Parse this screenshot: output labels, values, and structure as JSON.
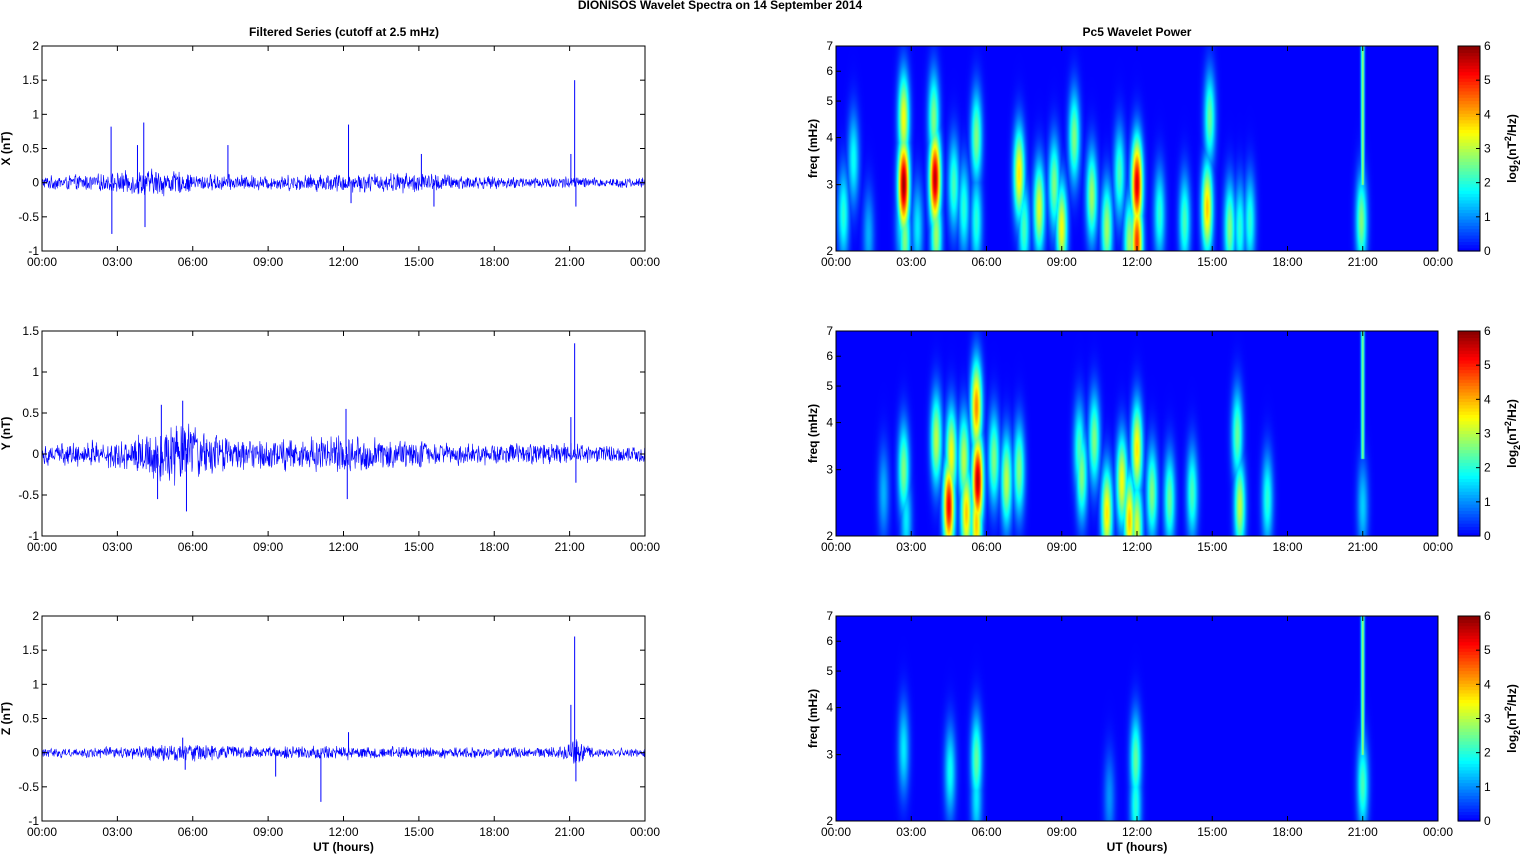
{
  "figure": {
    "title": "DIONISOS Wavelet Spectra on 14 September 2014",
    "left_title": "Filtered Series (cutoff at 2.5 mHz)",
    "right_title": "Pc5 Wavelet Power",
    "colors": {
      "series": "#0000ff",
      "background": "#00008f",
      "axes": "#000000"
    }
  },
  "chart_data": [
    {
      "type": "line",
      "component": "X",
      "ylabel": "X (nT)",
      "xlabel": "",
      "x_tick_labels": [
        "00:00",
        "03:00",
        "06:00",
        "09:00",
        "12:00",
        "15:00",
        "18:00",
        "21:00",
        "00:00"
      ],
      "xlim_hours": [
        0,
        24
      ],
      "ylim": [
        -1,
        2
      ],
      "y_ticks": [
        -1,
        -0.5,
        0,
        0.5,
        1,
        1.5,
        2
      ],
      "y_tick_labels": [
        "-1",
        "-0.5",
        "0",
        "0.5",
        "1",
        "1.5",
        "2"
      ],
      "grid": false,
      "series": [
        {
          "noise_envelope": [
            [
              0,
              0.09
            ],
            [
              2.5,
              0.12
            ],
            [
              4.5,
              0.2
            ],
            [
              6,
              0.12
            ],
            [
              9,
              0.1
            ],
            [
              12,
              0.13
            ],
            [
              15,
              0.14
            ],
            [
              18,
              0.08
            ],
            [
              21,
              0.09
            ],
            [
              22,
              0.07
            ],
            [
              24,
              0.07
            ]
          ],
          "spikes": [
            {
              "x": 2.75,
              "y": 0.82
            },
            {
              "x": 2.78,
              "y": -0.75
            },
            {
              "x": 4.05,
              "y": 0.88
            },
            {
              "x": 4.1,
              "y": -0.65
            },
            {
              "x": 3.8,
              "y": 0.55
            },
            {
              "x": 7.4,
              "y": 0.55
            },
            {
              "x": 12.2,
              "y": 0.85
            },
            {
              "x": 12.3,
              "y": -0.3
            },
            {
              "x": 15.1,
              "y": 0.42
            },
            {
              "x": 15.6,
              "y": -0.35
            },
            {
              "x": 21.05,
              "y": 0.42
            },
            {
              "x": 21.2,
              "y": 1.5
            },
            {
              "x": 21.25,
              "y": -0.35
            }
          ]
        }
      ]
    },
    {
      "type": "line",
      "component": "Y",
      "ylabel": "Y (nT)",
      "xlabel": "",
      "x_tick_labels": [
        "00:00",
        "03:00",
        "06:00",
        "09:00",
        "12:00",
        "15:00",
        "18:00",
        "21:00",
        "00:00"
      ],
      "xlim_hours": [
        0,
        24
      ],
      "ylim": [
        -1,
        1.5
      ],
      "y_ticks": [
        -1,
        -0.5,
        0,
        0.5,
        1,
        1.5
      ],
      "y_tick_labels": [
        "-1",
        "-0.5",
        "0",
        "0.5",
        "1",
        "1.5"
      ],
      "grid": false,
      "series": [
        {
          "noise_envelope": [
            [
              0,
              0.12
            ],
            [
              3.5,
              0.18
            ],
            [
              4.5,
              0.3
            ],
            [
              5.8,
              0.38
            ],
            [
              7,
              0.2
            ],
            [
              10,
              0.18
            ],
            [
              12,
              0.22
            ],
            [
              15,
              0.15
            ],
            [
              18,
              0.12
            ],
            [
              21,
              0.12
            ],
            [
              22,
              0.1
            ],
            [
              24,
              0.1
            ]
          ],
          "spikes": [
            {
              "x": 4.75,
              "y": 0.6
            },
            {
              "x": 4.6,
              "y": -0.55
            },
            {
              "x": 5.6,
              "y": 0.65
            },
            {
              "x": 5.75,
              "y": -0.7
            },
            {
              "x": 12.1,
              "y": 0.55
            },
            {
              "x": 12.15,
              "y": -0.55
            },
            {
              "x": 21.2,
              "y": 1.35
            },
            {
              "x": 21.25,
              "y": -0.35
            },
            {
              "x": 21.05,
              "y": 0.45
            }
          ]
        }
      ]
    },
    {
      "type": "line",
      "component": "Z",
      "ylabel": "Z (nT)",
      "xlabel": "UT (hours)",
      "x_tick_labels": [
        "00:00",
        "03:00",
        "06:00",
        "09:00",
        "12:00",
        "15:00",
        "18:00",
        "21:00",
        "00:00"
      ],
      "xlim_hours": [
        0,
        24
      ],
      "ylim": [
        -1,
        2
      ],
      "y_ticks": [
        -1,
        -0.5,
        0,
        0.5,
        1,
        1.5,
        2
      ],
      "y_tick_labels": [
        "-1",
        "-0.5",
        "0",
        "0.5",
        "1",
        "1.5",
        "2"
      ],
      "grid": false,
      "series": [
        {
          "noise_envelope": [
            [
              0,
              0.06
            ],
            [
              3,
              0.08
            ],
            [
              5.5,
              0.12
            ],
            [
              9,
              0.08
            ],
            [
              12,
              0.1
            ],
            [
              15,
              0.08
            ],
            [
              20.5,
              0.07
            ],
            [
              21.3,
              0.2
            ],
            [
              22,
              0.06
            ],
            [
              24,
              0.06
            ]
          ],
          "spikes": [
            {
              "x": 5.6,
              "y": 0.22
            },
            {
              "x": 5.7,
              "y": -0.25
            },
            {
              "x": 9.3,
              "y": -0.35
            },
            {
              "x": 11.1,
              "y": -0.72
            },
            {
              "x": 12.2,
              "y": 0.3
            },
            {
              "x": 21.05,
              "y": 0.7
            },
            {
              "x": 21.2,
              "y": 1.7
            },
            {
              "x": 21.25,
              "y": -0.42
            }
          ]
        }
      ]
    },
    {
      "type": "heatmap",
      "component": "X",
      "ylabel": "freq (mHz)",
      "xlabel": "",
      "x_tick_labels": [
        "00:00",
        "03:00",
        "06:00",
        "09:00",
        "12:00",
        "15:00",
        "18:00",
        "21:00",
        "00:00"
      ],
      "xlim_hours": [
        0,
        24
      ],
      "ylim_mhz": [
        2,
        7
      ],
      "y_scale": "log",
      "y_ticks": [
        2,
        3,
        4,
        5,
        6,
        7
      ],
      "y_tick_labels": [
        "2",
        "3",
        "4",
        "5",
        "6",
        "7"
      ],
      "colorbar": {
        "label": "log2(nT^2/Hz)",
        "label_base": "log",
        "label_sub": "2",
        "label_rest1": "(nT",
        "label_sup": "2",
        "label_rest2": "/Hz)",
        "ticks": [
          "0",
          "1",
          "2",
          "3",
          "4",
          "5",
          "6"
        ],
        "range": [
          0,
          6
        ],
        "colormap": "jet"
      },
      "events": [
        {
          "t": 0.3,
          "f": 2.5,
          "p": 2.0
        },
        {
          "t": 0.7,
          "f": 3.5,
          "p": 1.8
        },
        {
          "t": 1.3,
          "f": 2.2,
          "p": 1.2
        },
        {
          "t": 2.6,
          "f": 2.4,
          "p": 1.6
        },
        {
          "t": 2.7,
          "f": 3.0,
          "p": 5.8
        },
        {
          "t": 2.7,
          "f": 4.5,
          "p": 3.4
        },
        {
          "t": 2.75,
          "f": 2.15,
          "p": 2.6
        },
        {
          "t": 3.25,
          "f": 2.3,
          "p": 1.6
        },
        {
          "t": 3.95,
          "f": 3.1,
          "p": 5.6
        },
        {
          "t": 3.9,
          "f": 4.5,
          "p": 2.6
        },
        {
          "t": 4.0,
          "f": 2.2,
          "p": 2.8
        },
        {
          "t": 4.7,
          "f": 3.0,
          "p": 2.2
        },
        {
          "t": 5.1,
          "f": 2.6,
          "p": 2.0
        },
        {
          "t": 5.6,
          "f": 4.0,
          "p": 2.6
        },
        {
          "t": 5.6,
          "f": 2.4,
          "p": 2.0
        },
        {
          "t": 7.3,
          "f": 3.2,
          "p": 3.6
        },
        {
          "t": 7.5,
          "f": 2.3,
          "p": 2.2
        },
        {
          "t": 8.1,
          "f": 2.6,
          "p": 3.2
        },
        {
          "t": 8.7,
          "f": 3.0,
          "p": 2.6
        },
        {
          "t": 9.0,
          "f": 2.3,
          "p": 3.4
        },
        {
          "t": 9.5,
          "f": 4.0,
          "p": 2.6
        },
        {
          "t": 10.2,
          "f": 2.8,
          "p": 2.8
        },
        {
          "t": 10.8,
          "f": 2.3,
          "p": 2.8
        },
        {
          "t": 11.3,
          "f": 3.2,
          "p": 2.2
        },
        {
          "t": 11.7,
          "f": 2.1,
          "p": 2.8
        },
        {
          "t": 12.0,
          "f": 3.0,
          "p": 5.4
        },
        {
          "t": 12.0,
          "f": 2.1,
          "p": 4.8
        },
        {
          "t": 12.9,
          "f": 2.5,
          "p": 2.0
        },
        {
          "t": 13.9,
          "f": 2.4,
          "p": 2.2
        },
        {
          "t": 14.8,
          "f": 2.6,
          "p": 3.8
        },
        {
          "t": 14.9,
          "f": 4.5,
          "p": 2.4
        },
        {
          "t": 15.7,
          "f": 2.3,
          "p": 2.6
        },
        {
          "t": 16.1,
          "f": 2.3,
          "p": 2.0
        },
        {
          "t": 16.5,
          "f": 2.4,
          "p": 2.0
        },
        {
          "t": 20.95,
          "f": 2.4,
          "p": 2.6
        }
      ],
      "streaks": [
        {
          "t": 21.0,
          "f_from": 3.0,
          "f_to": 7.0,
          "p": 2.8
        }
      ]
    },
    {
      "type": "heatmap",
      "component": "Y",
      "ylabel": "freq (mHz)",
      "xlabel": "",
      "x_tick_labels": [
        "00:00",
        "03:00",
        "06:00",
        "09:00",
        "12:00",
        "15:00",
        "18:00",
        "21:00",
        "00:00"
      ],
      "xlim_hours": [
        0,
        24
      ],
      "ylim_mhz": [
        2,
        7
      ],
      "y_scale": "log",
      "y_ticks": [
        2,
        3,
        4,
        5,
        6,
        7
      ],
      "y_tick_labels": [
        "2",
        "3",
        "4",
        "5",
        "6",
        "7"
      ],
      "colorbar": {
        "label": "log2(nT^2/Hz)",
        "label_base": "log",
        "label_sub": "2",
        "label_rest1": "(nT",
        "label_sup": "2",
        "label_rest2": "/Hz)",
        "ticks": [
          "0",
          "1",
          "2",
          "3",
          "4",
          "5",
          "6"
        ],
        "range": [
          0,
          6
        ],
        "colormap": "jet"
      },
      "events": [
        {
          "t": 1.9,
          "f": 2.6,
          "p": 1.2
        },
        {
          "t": 2.7,
          "f": 3.0,
          "p": 2.6
        },
        {
          "t": 2.8,
          "f": 2.2,
          "p": 1.6
        },
        {
          "t": 4.0,
          "f": 3.6,
          "p": 3.0
        },
        {
          "t": 4.5,
          "f": 2.4,
          "p": 5.2
        },
        {
          "t": 4.6,
          "f": 3.3,
          "p": 3.4
        },
        {
          "t": 5.1,
          "f": 3.2,
          "p": 3.0
        },
        {
          "t": 5.2,
          "f": 2.3,
          "p": 3.8
        },
        {
          "t": 5.65,
          "f": 2.8,
          "p": 5.6
        },
        {
          "t": 5.6,
          "f": 4.4,
          "p": 4.2
        },
        {
          "t": 5.6,
          "f": 2.15,
          "p": 3.8
        },
        {
          "t": 6.3,
          "f": 3.2,
          "p": 2.6
        },
        {
          "t": 6.8,
          "f": 2.8,
          "p": 3.0
        },
        {
          "t": 7.3,
          "f": 3.0,
          "p": 2.6
        },
        {
          "t": 9.7,
          "f": 3.4,
          "p": 2.2
        },
        {
          "t": 9.8,
          "f": 2.9,
          "p": 2.6
        },
        {
          "t": 10.3,
          "f": 3.6,
          "p": 2.6
        },
        {
          "t": 10.8,
          "f": 2.3,
          "p": 3.6
        },
        {
          "t": 11.4,
          "f": 2.8,
          "p": 3.4
        },
        {
          "t": 11.7,
          "f": 2.2,
          "p": 3.8
        },
        {
          "t": 12.0,
          "f": 3.4,
          "p": 3.6
        },
        {
          "t": 12.0,
          "f": 2.1,
          "p": 3.2
        },
        {
          "t": 12.6,
          "f": 2.6,
          "p": 2.6
        },
        {
          "t": 13.3,
          "f": 2.5,
          "p": 2.4
        },
        {
          "t": 14.2,
          "f": 2.6,
          "p": 2.2
        },
        {
          "t": 16.1,
          "f": 2.4,
          "p": 3.0
        },
        {
          "t": 16.0,
          "f": 3.7,
          "p": 2.4
        },
        {
          "t": 17.2,
          "f": 2.5,
          "p": 2.0
        },
        {
          "t": 21.0,
          "f": 2.4,
          "p": 1.4
        }
      ],
      "streaks": [
        {
          "t": 21.0,
          "f_from": 3.2,
          "f_to": 7.0,
          "p": 2.6
        }
      ]
    },
    {
      "type": "heatmap",
      "component": "Z",
      "ylabel": "freq (mHz)",
      "xlabel": "UT (hours)",
      "x_tick_labels": [
        "00:00",
        "03:00",
        "06:00",
        "09:00",
        "12:00",
        "15:00",
        "18:00",
        "21:00",
        "00:00"
      ],
      "xlim_hours": [
        0,
        24
      ],
      "ylim_mhz": [
        2,
        7
      ],
      "y_scale": "log",
      "y_ticks": [
        2,
        3,
        4,
        5,
        6,
        7
      ],
      "y_tick_labels": [
        "2",
        "3",
        "4",
        "5",
        "6",
        "7"
      ],
      "colorbar": {
        "label": "log2(nT^2/Hz)",
        "label_base": "log",
        "label_sub": "2",
        "label_rest1": "(nT",
        "label_sup": "2",
        "label_rest2": "/Hz)",
        "ticks": [
          "0",
          "1",
          "2",
          "3",
          "4",
          "5",
          "6"
        ],
        "range": [
          0,
          6
        ],
        "colormap": "jet"
      },
      "events": [
        {
          "t": 2.7,
          "f": 3.1,
          "p": 1.6
        },
        {
          "t": 4.55,
          "f": 2.7,
          "p": 1.8
        },
        {
          "t": 5.6,
          "f": 2.9,
          "p": 2.4
        },
        {
          "t": 5.6,
          "f": 2.3,
          "p": 1.6
        },
        {
          "t": 10.9,
          "f": 2.3,
          "p": 1.0
        },
        {
          "t": 11.95,
          "f": 2.9,
          "p": 2.4
        },
        {
          "t": 11.95,
          "f": 2.2,
          "p": 2.0
        },
        {
          "t": 21.0,
          "f": 2.5,
          "p": 2.2
        }
      ],
      "streaks": [
        {
          "t": 21.0,
          "f_from": 3.0,
          "f_to": 7.0,
          "p": 2.8
        }
      ]
    }
  ]
}
